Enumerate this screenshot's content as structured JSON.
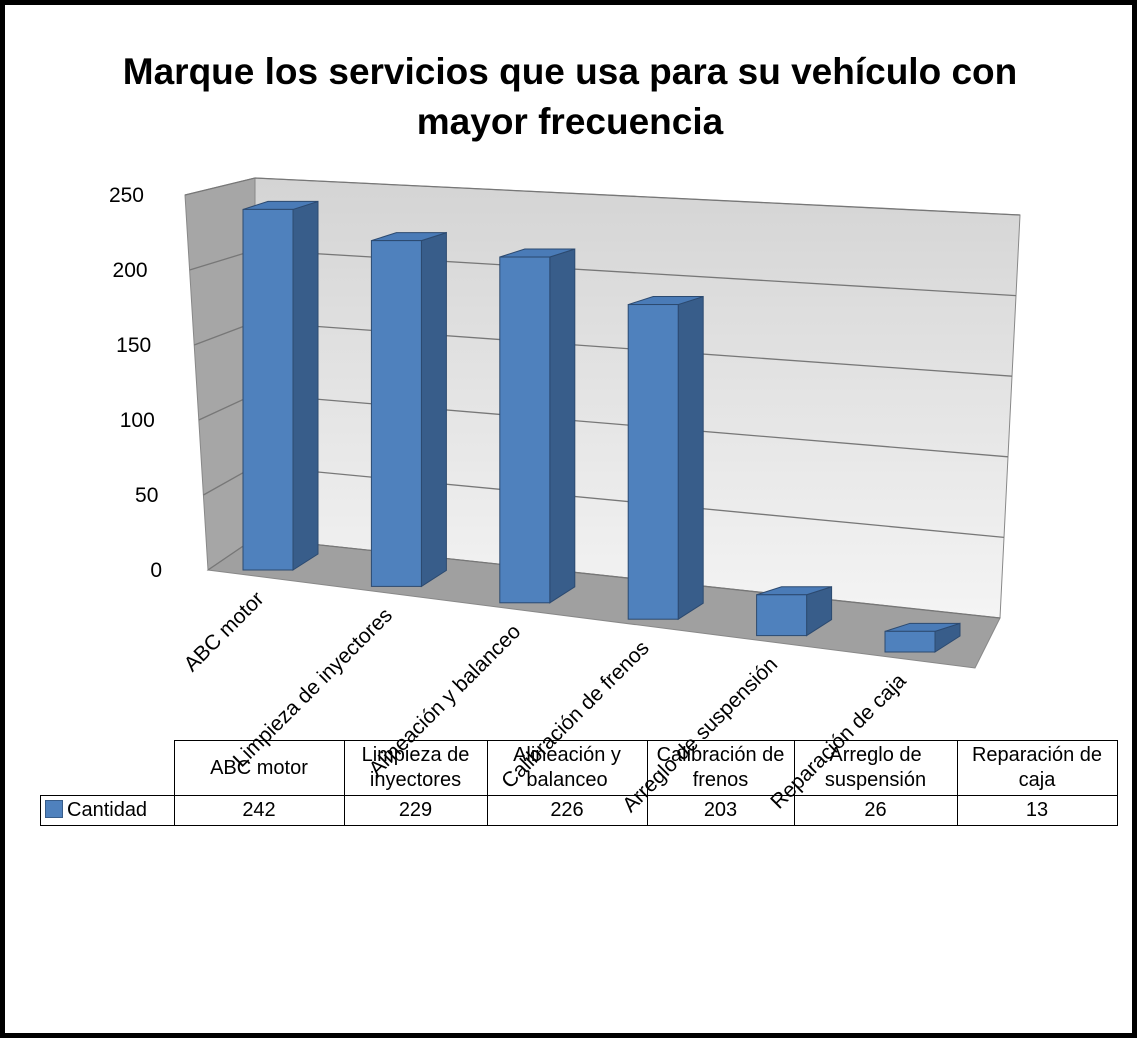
{
  "chart_data": {
    "type": "bar3d",
    "title": "Marque los servicios que usa para su vehículo con mayor frecuencia",
    "categories": [
      "ABC motor",
      "Limpieza de inyectores",
      "Alineación y balanceo",
      "Calibración de frenos",
      "Arreglo de suspensión",
      "Reparación de caja"
    ],
    "series": [
      {
        "name": "Cantidad",
        "color": "#4f81bd",
        "values": [
          242,
          229,
          226,
          203,
          26,
          13
        ]
      }
    ],
    "ylim": [
      0,
      250
    ],
    "yticks": [
      0,
      50,
      100,
      150,
      200,
      250
    ],
    "grid": true
  }
}
